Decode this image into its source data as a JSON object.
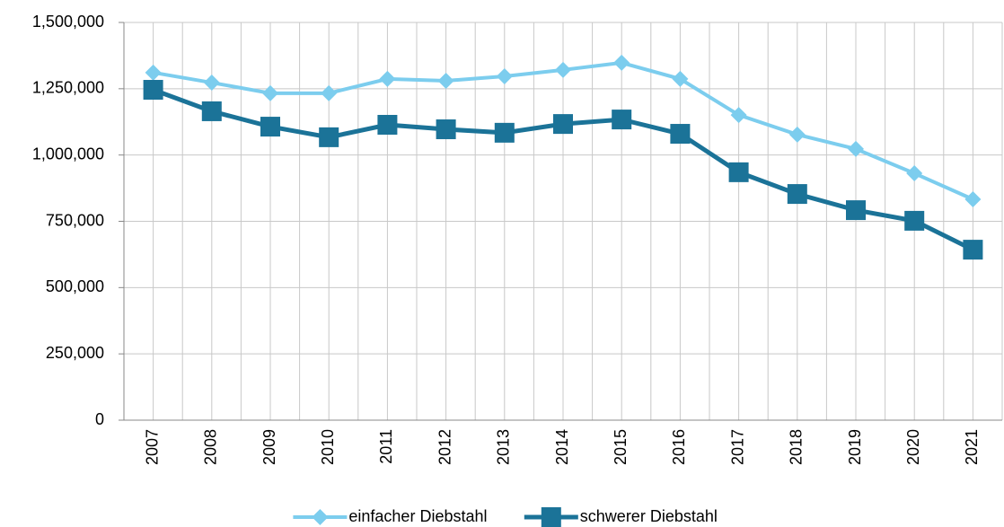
{
  "chart_data": {
    "type": "line",
    "categories": [
      "2007",
      "2008",
      "2009",
      "2010",
      "2011",
      "2012",
      "2013",
      "2014",
      "2015",
      "2016",
      "2017",
      "2018",
      "2019",
      "2020",
      "2021"
    ],
    "series": [
      {
        "name": "einfacher Diebstahl",
        "color": "#7ccdee",
        "marker": "diamond",
        "values": [
          1311000,
          1273000,
          1233000,
          1233000,
          1287000,
          1280000,
          1297000,
          1321000,
          1348000,
          1287000,
          1151000,
          1077000,
          1023000,
          931000,
          833000
        ]
      },
      {
        "name": "schwerer Diebstahl",
        "color": "#1b7398",
        "marker": "square",
        "values": [
          1246000,
          1165000,
          1107000,
          1067000,
          1114000,
          1097000,
          1084000,
          1117000,
          1134000,
          1080000,
          935000,
          853000,
          792000,
          752000,
          643000
        ]
      }
    ],
    "ylim": [
      0,
      1500000
    ],
    "yticks": [
      0,
      {
        "value": 250000,
        "label": "250,000"
      },
      {
        "value": 500000,
        "label": "500,000"
      },
      {
        "value": 750000,
        "label": "750,000"
      },
      {
        "value": 1000000,
        "label": "1,000,000"
      },
      {
        "value": 1250000,
        "label": "1,250,000"
      },
      {
        "value": 1500000,
        "label": "1,500,000"
      }
    ],
    "grid": true,
    "legend": "bottom"
  }
}
